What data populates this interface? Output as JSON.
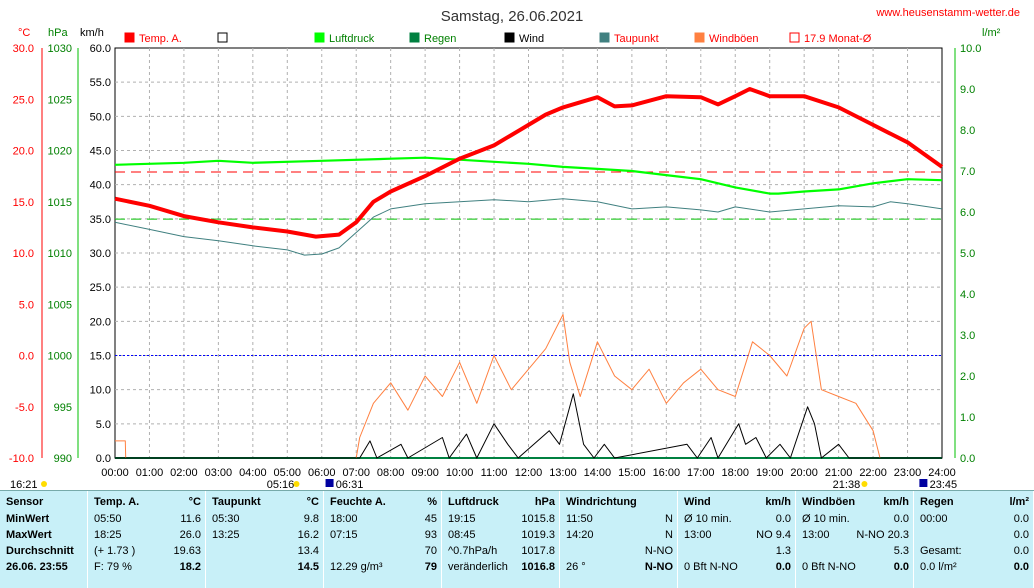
{
  "chart_data": {
    "type": "line",
    "title": "Samstag, 26.06.2021",
    "site": "www.heusenstamm-wetter.de",
    "x_range": [
      "00:00",
      "24:00"
    ],
    "x_ticks": [
      "00:00",
      "01:00",
      "02:00",
      "03:00",
      "04:00",
      "05:00",
      "06:00",
      "07:00",
      "08:00",
      "09:00",
      "10:00",
      "11:00",
      "12:00",
      "13:00",
      "14:00",
      "15:00",
      "16:00",
      "17:00",
      "18:00",
      "19:00",
      "20:00",
      "21:00",
      "22:00",
      "23:00",
      "24:00"
    ],
    "axes": {
      "temp": {
        "unit": "°C",
        "ticks": [
          "30.0",
          "25.0",
          "20.0",
          "15.0",
          "10.0",
          "5.0",
          "0.0",
          "-5.0",
          "-10.0"
        ],
        "range": [
          -10,
          30
        ]
      },
      "pressure": {
        "unit": "hPa",
        "ticks": [
          "1030",
          "1025",
          "1020",
          "1015",
          "1010",
          "1005",
          "1000",
          "995",
          "990"
        ],
        "range": [
          990,
          1030
        ]
      },
      "wind": {
        "unit": "km/h",
        "ticks": [
          "60.0",
          "55.0",
          "50.0",
          "45.0",
          "40.0",
          "35.0",
          "30.0",
          "25.0",
          "20.0",
          "15.0",
          "10.0",
          "5.0",
          "0.0"
        ],
        "range": [
          0,
          60
        ]
      },
      "rain": {
        "unit": "l/m²",
        "ticks": [
          "10.0",
          "9.0",
          "8.0",
          "7.0",
          "6.0",
          "5.0",
          "4.0",
          "3.0",
          "2.0",
          "1.0",
          "0.0"
        ],
        "range": [
          0,
          10
        ]
      }
    },
    "legend": [
      {
        "label": "Temp. A.",
        "color": "#ff0000",
        "fill": true
      },
      {
        "label": "",
        "color": "#000000",
        "fill": false
      },
      {
        "label": "Luftdruck",
        "color": "#00ff00",
        "fill": true
      },
      {
        "label": "Regen",
        "color": "#008040",
        "fill": true
      },
      {
        "label": "Wind",
        "color": "#000000",
        "fill": true
      },
      {
        "label": "Taupunkt",
        "color": "#408080",
        "fill": true
      },
      {
        "label": "Windböen",
        "color": "#ff8040",
        "fill": true
      },
      {
        "label": "17.9 Monat-Ø",
        "color": "#ff0000",
        "fill": false
      }
    ],
    "reference_lines": {
      "monthly_avg_temp": 17.9,
      "pressure_line": 1013.3,
      "zero_temp": 0.0
    },
    "sun_markers": {
      "sunrise": "05:16",
      "sunset": "21:38",
      "moonset": "06:31",
      "moonrise": "23:45",
      "left_time": "16:21"
    },
    "series": [
      {
        "name": "Temp. A.",
        "axis": "temp",
        "color": "#ff0000",
        "points": [
          [
            0,
            15.3
          ],
          [
            1,
            14.6
          ],
          [
            2,
            13.6
          ],
          [
            3,
            13.0
          ],
          [
            4,
            12.5
          ],
          [
            5,
            12.1
          ],
          [
            5.83,
            11.6
          ],
          [
            6.5,
            11.8
          ],
          [
            7,
            13.0
          ],
          [
            7.5,
            15.0
          ],
          [
            8,
            16.0
          ],
          [
            9,
            17.5
          ],
          [
            10,
            19.2
          ],
          [
            11,
            20.5
          ],
          [
            11.5,
            21.5
          ],
          [
            12,
            22.5
          ],
          [
            12.5,
            23.5
          ],
          [
            13,
            24.2
          ],
          [
            14,
            25.2
          ],
          [
            14.5,
            24.3
          ],
          [
            15,
            24.4
          ],
          [
            16,
            25.3
          ],
          [
            17,
            25.2
          ],
          [
            17.5,
            24.5
          ],
          [
            18,
            25.3
          ],
          [
            18.42,
            26.0
          ],
          [
            19,
            25.3
          ],
          [
            20,
            25.3
          ],
          [
            21,
            24.2
          ],
          [
            22,
            22.5
          ],
          [
            23,
            20.8
          ],
          [
            24,
            18.4
          ]
        ]
      },
      {
        "name": "Taupunkt",
        "axis": "temp",
        "color": "#408080",
        "points": [
          [
            0,
            13.0
          ],
          [
            1,
            12.3
          ],
          [
            2,
            11.6
          ],
          [
            3,
            11.2
          ],
          [
            4,
            10.7
          ],
          [
            5,
            10.3
          ],
          [
            5.5,
            9.8
          ],
          [
            6,
            9.9
          ],
          [
            6.5,
            10.5
          ],
          [
            7,
            12.0
          ],
          [
            7.5,
            13.5
          ],
          [
            8,
            14.3
          ],
          [
            9,
            14.8
          ],
          [
            10,
            15.0
          ],
          [
            11,
            15.2
          ],
          [
            12,
            15.0
          ],
          [
            13,
            15.3
          ],
          [
            14,
            15.0
          ],
          [
            15,
            14.3
          ],
          [
            16,
            14.5
          ],
          [
            17,
            14.2
          ],
          [
            17.5,
            14.0
          ],
          [
            18,
            14.5
          ],
          [
            19,
            14.0
          ],
          [
            20,
            14.3
          ],
          [
            21,
            14.6
          ],
          [
            22,
            14.5
          ],
          [
            22.5,
            15.0
          ],
          [
            23,
            14.8
          ],
          [
            24,
            14.3
          ]
        ]
      },
      {
        "name": "Luftdruck",
        "axis": "pressure",
        "color": "#00ff00",
        "points": [
          [
            0,
            1018.6
          ],
          [
            2,
            1018.8
          ],
          [
            3,
            1019.0
          ],
          [
            4,
            1018.8
          ],
          [
            6,
            1019.0
          ],
          [
            8,
            1019.2
          ],
          [
            9,
            1019.3
          ],
          [
            10,
            1019.1
          ],
          [
            11,
            1018.9
          ],
          [
            12,
            1018.7
          ],
          [
            13,
            1018.4
          ],
          [
            14,
            1018.2
          ],
          [
            15,
            1018.0
          ],
          [
            16,
            1017.6
          ],
          [
            17,
            1017.2
          ],
          [
            18,
            1016.4
          ],
          [
            19,
            1015.8
          ],
          [
            19.25,
            1015.8
          ],
          [
            20,
            1016.0
          ],
          [
            21,
            1016.2
          ],
          [
            22,
            1016.8
          ],
          [
            23,
            1017.2
          ],
          [
            24,
            1017.1
          ]
        ]
      },
      {
        "name": "Windböen",
        "axis": "wind",
        "color": "#ff8040",
        "points": [
          [
            0,
            2.5
          ],
          [
            0.3,
            2.5
          ],
          [
            0.31,
            0
          ],
          [
            7.0,
            0
          ],
          [
            7.1,
            3
          ],
          [
            7.5,
            8
          ],
          [
            8,
            11
          ],
          [
            8.5,
            7
          ],
          [
            9,
            12
          ],
          [
            9.5,
            9
          ],
          [
            10,
            14
          ],
          [
            10.5,
            8
          ],
          [
            11,
            15
          ],
          [
            11.5,
            10
          ],
          [
            12,
            13
          ],
          [
            12.5,
            16
          ],
          [
            13,
            21
          ],
          [
            13.2,
            14
          ],
          [
            13.5,
            9
          ],
          [
            14,
            17
          ],
          [
            14.5,
            12
          ],
          [
            15,
            10
          ],
          [
            15.5,
            13
          ],
          [
            16,
            8
          ],
          [
            16.5,
            11
          ],
          [
            17,
            13
          ],
          [
            17.5,
            10
          ],
          [
            18,
            9
          ],
          [
            18.5,
            17
          ],
          [
            19,
            15
          ],
          [
            19.5,
            12
          ],
          [
            20,
            19
          ],
          [
            20.2,
            20
          ],
          [
            20.5,
            10
          ],
          [
            21,
            9
          ],
          [
            21.5,
            8
          ],
          [
            22,
            4
          ],
          [
            22.2,
            0
          ]
        ]
      },
      {
        "name": "Wind",
        "axis": "wind",
        "color": "#000000",
        "points": [
          [
            0,
            0
          ],
          [
            7.1,
            0
          ],
          [
            7.4,
            2.5
          ],
          [
            7.6,
            0
          ],
          [
            8.3,
            2
          ],
          [
            8.5,
            0
          ],
          [
            9.5,
            3
          ],
          [
            9.7,
            0
          ],
          [
            10.2,
            3.5
          ],
          [
            10.5,
            0
          ],
          [
            11.0,
            5
          ],
          [
            11.4,
            2
          ],
          [
            11.7,
            0
          ],
          [
            12.6,
            4
          ],
          [
            12.9,
            2
          ],
          [
            13.3,
            9.4
          ],
          [
            13.6,
            2
          ],
          [
            13.9,
            0
          ],
          [
            14.2,
            2
          ],
          [
            14.5,
            0
          ],
          [
            16.6,
            2
          ],
          [
            16.9,
            0
          ],
          [
            17.3,
            3
          ],
          [
            17.5,
            0
          ],
          [
            18.1,
            5
          ],
          [
            18.3,
            2
          ],
          [
            18.6,
            3
          ],
          [
            18.9,
            0
          ],
          [
            19.3,
            2
          ],
          [
            19.6,
            0
          ],
          [
            20.1,
            7.5
          ],
          [
            20.3,
            5
          ],
          [
            20.5,
            0
          ],
          [
            21.0,
            2
          ],
          [
            21.3,
            0
          ],
          [
            24,
            0
          ]
        ]
      },
      {
        "name": "Regen",
        "axis": "rain",
        "color": "#008040",
        "points": [
          [
            0,
            0
          ],
          [
            24,
            0
          ]
        ]
      }
    ]
  },
  "table": {
    "columns": [
      {
        "title": "Sensor",
        "unit": "",
        "rows": [
          [
            "MinWert",
            ""
          ],
          [
            "MaxWert",
            ""
          ],
          [
            "Durchschnitt",
            ""
          ],
          [
            "26.06. 23:55",
            ""
          ]
        ]
      },
      {
        "title": "Temp. A.",
        "unit": "°C",
        "rows": [
          [
            "05:50",
            "11.6"
          ],
          [
            "18:25",
            "26.0"
          ],
          [
            "(+ 1.73 )",
            "19.63"
          ],
          [
            "F: 79 %",
            "18.2"
          ]
        ]
      },
      {
        "title": "Taupunkt",
        "unit": "°C",
        "rows": [
          [
            "05:30",
            "9.8"
          ],
          [
            "13:25",
            "16.2"
          ],
          [
            "",
            "13.4"
          ],
          [
            "",
            "14.5"
          ]
        ]
      },
      {
        "title": "Feuchte A.",
        "unit": "%",
        "rows": [
          [
            "18:00",
            "45"
          ],
          [
            "07:15",
            "93"
          ],
          [
            "",
            "70"
          ],
          [
            "12.29 g/m³",
            "79"
          ]
        ]
      },
      {
        "title": "Luftdruck",
        "unit": "hPa",
        "rows": [
          [
            "19:15",
            "1015.8"
          ],
          [
            "08:45",
            "1019.3"
          ],
          [
            "^0.7hPa/h",
            "1017.8"
          ],
          [
            "veränderlich",
            "1016.8"
          ]
        ]
      },
      {
        "title": "Windrichtung",
        "unit": "",
        "rows": [
          [
            "11:50",
            "N"
          ],
          [
            "14:20",
            "N"
          ],
          [
            "",
            "N-NO"
          ],
          [
            "26 °",
            "N-NO"
          ]
        ]
      },
      {
        "title": "Wind",
        "unit": "km/h",
        "rows": [
          [
            "Ø 10 min.",
            "0.0"
          ],
          [
            "13:00",
            "NO 9.4"
          ],
          [
            "",
            "1.3"
          ],
          [
            "0 Bft N-NO",
            "0.0"
          ]
        ]
      },
      {
        "title": "Windböen",
        "unit": "km/h",
        "rows": [
          [
            "Ø 10 min.",
            "0.0"
          ],
          [
            "13:00",
            "N-NO 20.3"
          ],
          [
            "",
            "5.3"
          ],
          [
            "0 Bft N-NO",
            "0.0"
          ]
        ]
      },
      {
        "title": "Regen",
        "unit": "l/m²",
        "rows": [
          [
            "00:00",
            "0.0"
          ],
          [
            "",
            "0.0"
          ],
          [
            "Gesamt:",
            "0.0"
          ],
          [
            "0.0 l/m²",
            "0.0"
          ]
        ]
      }
    ]
  }
}
